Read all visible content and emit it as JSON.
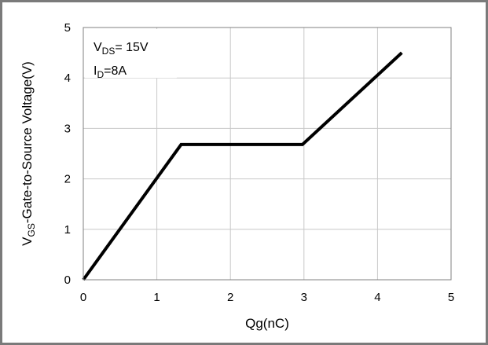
{
  "chart_data": {
    "type": "line",
    "xlabel": "Qg(nC)",
    "ylabel": {
      "prefix": "V",
      "sub": "GS",
      "rest": "-Gate-to-Source Voltage(V)"
    },
    "xlim": [
      0,
      5
    ],
    "ylim": [
      0,
      5
    ],
    "x_ticks": [
      "0",
      "1",
      "2",
      "3",
      "4",
      "5"
    ],
    "y_ticks": [
      "0",
      "1",
      "2",
      "3",
      "4",
      "5"
    ],
    "grid": true,
    "series": [
      {
        "x": [
          0,
          1.33,
          2.98,
          4.33
        ],
        "y": [
          0,
          2.68,
          2.68,
          4.5
        ],
        "color": "#000000"
      }
    ],
    "annotations": [
      {
        "prefix": "V",
        "sub": "DS",
        "rest": "= 15V"
      },
      {
        "prefix": "I",
        "sub": "D",
        "rest": "=8A"
      }
    ]
  }
}
